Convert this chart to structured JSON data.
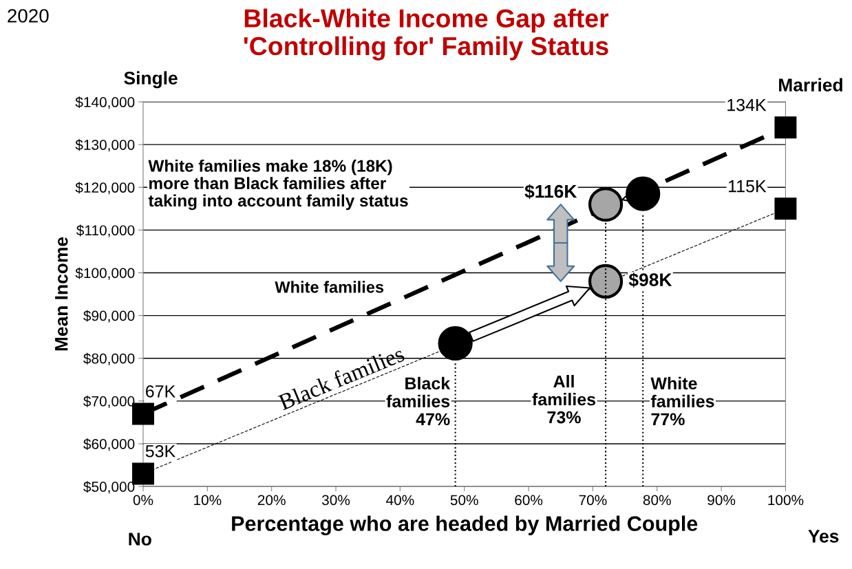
{
  "chart_data": {
    "type": "line",
    "title": "Black-White Income Gap after\n'Controlling for' Family Status",
    "xlabel": "Percentage who are headed by Married Couple",
    "ylabel": "Mean Income",
    "xlim": [
      0,
      100
    ],
    "xticks": [
      {
        "value": 0,
        "label": "0%"
      },
      {
        "value": 10,
        "label": "10%"
      },
      {
        "value": 20,
        "label": "20%"
      },
      {
        "value": 30,
        "label": "30%"
      },
      {
        "value": 40,
        "label": "40%"
      },
      {
        "value": 50,
        "label": "50%"
      },
      {
        "value": 60,
        "label": "60%"
      },
      {
        "value": 70,
        "label": "70%"
      },
      {
        "value": 80,
        "label": "80%"
      },
      {
        "value": 90,
        "label": "90%"
      },
      {
        "value": 100,
        "label": "100%"
      }
    ],
    "ylim": [
      50000,
      140000
    ],
    "yticks": [
      {
        "value": 50000,
        "label": "$50,000"
      },
      {
        "value": 60000,
        "label": "$60,000"
      },
      {
        "value": 70000,
        "label": "$70,000"
      },
      {
        "value": 80000,
        "label": "$80,000"
      },
      {
        "value": 90000,
        "label": "$90,000"
      },
      {
        "value": 100000,
        "label": "$100,000"
      },
      {
        "value": 110000,
        "label": "$110,000"
      },
      {
        "value": 120000,
        "label": "$120,000"
      },
      {
        "value": 130000,
        "label": "$130,000"
      },
      {
        "value": 140000,
        "label": "$140,000"
      }
    ],
    "grid": "y",
    "legend": false,
    "series": [
      {
        "name": "White families",
        "color": "#000000",
        "line_style": "dashed",
        "marker": "square",
        "x": [
          0,
          100
        ],
        "values": [
          67000,
          134000
        ]
      },
      {
        "name": "Black families",
        "color": "#000000",
        "line_style": "dashed",
        "marker": "square",
        "x": [
          0,
          100
        ],
        "values": [
          53000,
          115000
        ]
      },
      {
        "color": "#000000",
        "line_style": "dotted",
        "marker": "none",
        "x": [
          48.6,
          48.6
        ],
        "values": [
          50000,
          79000
        ]
      },
      {
        "color": "#000000",
        "line_style": "dotted",
        "marker": "none",
        "x": [
          72,
          72
        ],
        "values": [
          50000,
          112000
        ]
      },
      {
        "color": "#000000",
        "line_style": "dotted",
        "marker": "none",
        "x": [
          77.8,
          77.8
        ],
        "values": [
          50000,
          114000
        ]
      },
      {
        "type": "scatter",
        "marker": "circle",
        "x": [
          48.6,
          72,
          72,
          77.8
        ],
        "values": [
          83500,
          98000,
          116000,
          118500
        ],
        "colors": [
          "#000000",
          "#a6a6a6",
          "#a6a6a6",
          "#000000"
        ]
      }
    ],
    "annotations": [
      "2020",
      "Single",
      "Married",
      "No",
      "Yes",
      "White families make 18% (18K)\nmore than Black families after\ntaking into account family status",
      "Black\nfamilies\n47%",
      "All\nfamilies\n73%",
      "White\nfamilies\n77%",
      {
        "text": "134K",
        "x": 100,
        "y": 134000
      },
      {
        "text": "115K",
        "x": 100,
        "y": 115000
      },
      {
        "text": "67K",
        "x": 0,
        "y": 67000
      },
      {
        "text": "53K",
        "x": 0,
        "y": 53000
      },
      {
        "text": "$116K",
        "x": 72,
        "y": 116000
      },
      {
        "text": "$98K",
        "x": 72,
        "y": 98000
      }
    ]
  }
}
